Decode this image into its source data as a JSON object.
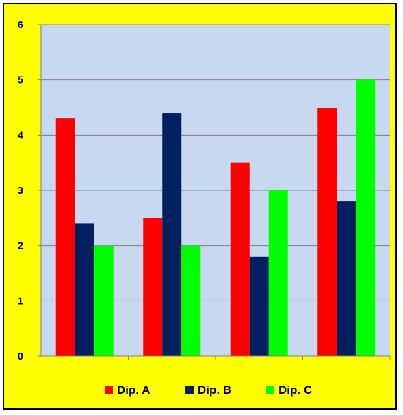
{
  "chart_data": {
    "type": "bar",
    "title": "",
    "xlabel": "",
    "ylabel": "",
    "categories": [
      "",
      "",
      "",
      ""
    ],
    "ylim": [
      0,
      6
    ],
    "yticks": [
      0,
      1,
      2,
      3,
      4,
      5,
      6
    ],
    "grid": true,
    "legend_position": "bottom",
    "series": [
      {
        "name": "Dip. A",
        "color": "#ff0000",
        "values": [
          4.3,
          2.5,
          3.5,
          4.5
        ]
      },
      {
        "name": "Dip. B",
        "color": "#002060",
        "values": [
          2.4,
          4.4,
          1.8,
          2.8
        ]
      },
      {
        "name": "Dip. C",
        "color": "#00ff00",
        "values": [
          2.0,
          2.0,
          3.0,
          5.0
        ]
      }
    ],
    "colors": {
      "plot_background": "#c6d9f0",
      "chart_background": "#ffff00",
      "gridline": "#808080"
    }
  }
}
